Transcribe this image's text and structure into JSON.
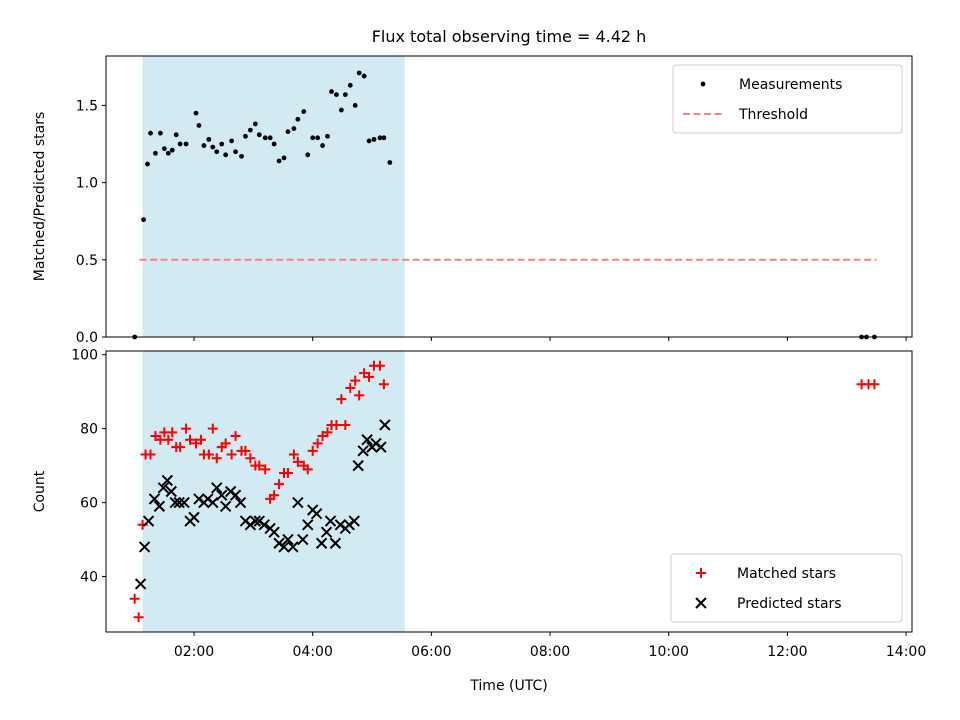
{
  "title": "Flux total observing time = 4.42 h",
  "colors": {
    "shade": "#add8e6",
    "measurement": "#000000",
    "threshold": "#ff7f7f",
    "matched": "#ff0000",
    "predicted": "#000000"
  },
  "chart_data": [
    {
      "type": "scatter",
      "ylabel": "Matched/Predicted stars",
      "xlim": [
        "00:31",
        "14:06"
      ],
      "ylim": [
        0,
        1.82
      ],
      "yticks": [
        "0.0",
        "0.5",
        "1.0",
        "1.5"
      ],
      "ytick_values": [
        0,
        0.5,
        1.0,
        1.5
      ],
      "grid": false,
      "legend_position": "top-right",
      "shaded_interval": [
        "01:08",
        "05:33"
      ],
      "series": [
        {
          "name": "Measurements",
          "marker": "dot",
          "points": [
            [
              "01:00",
              0.0
            ],
            [
              "01:09",
              0.76
            ],
            [
              "01:13",
              1.12
            ],
            [
              "01:16",
              1.32
            ],
            [
              "01:21",
              1.19
            ],
            [
              "01:26",
              1.32
            ],
            [
              "01:30",
              1.22
            ],
            [
              "01:34",
              1.19
            ],
            [
              "01:38",
              1.21
            ],
            [
              "01:42",
              1.31
            ],
            [
              "01:46",
              1.25
            ],
            [
              "01:52",
              1.25
            ],
            [
              "02:02",
              1.45
            ],
            [
              "02:05",
              1.37
            ],
            [
              "02:10",
              1.24
            ],
            [
              "02:15",
              1.28
            ],
            [
              "02:19",
              1.23
            ],
            [
              "02:23",
              1.2
            ],
            [
              "02:28",
              1.25
            ],
            [
              "02:32",
              1.18
            ],
            [
              "02:38",
              1.27
            ],
            [
              "02:42",
              1.2
            ],
            [
              "02:48",
              1.17
            ],
            [
              "02:52",
              1.3
            ],
            [
              "02:57",
              1.34
            ],
            [
              "03:02",
              1.38
            ],
            [
              "03:06",
              1.31
            ],
            [
              "03:12",
              1.29
            ],
            [
              "03:17",
              1.29
            ],
            [
              "03:21",
              1.25
            ],
            [
              "03:26",
              1.14
            ],
            [
              "03:31",
              1.16
            ],
            [
              "03:35",
              1.33
            ],
            [
              "03:41",
              1.35
            ],
            [
              "03:45",
              1.41
            ],
            [
              "03:51",
              1.46
            ],
            [
              "03:55",
              1.18
            ],
            [
              "04:00",
              1.29
            ],
            [
              "04:05",
              1.29
            ],
            [
              "04:10",
              1.24
            ],
            [
              "04:15",
              1.3
            ],
            [
              "04:19",
              1.59
            ],
            [
              "04:24",
              1.57
            ],
            [
              "04:29",
              1.47
            ],
            [
              "04:33",
              1.57
            ],
            [
              "04:38",
              1.63
            ],
            [
              "04:43",
              1.5
            ],
            [
              "04:47",
              1.71
            ],
            [
              "04:52",
              1.69
            ],
            [
              "04:57",
              1.27
            ],
            [
              "05:02",
              1.28
            ],
            [
              "05:08",
              1.29
            ],
            [
              "05:12",
              1.29
            ],
            [
              "05:18",
              1.13
            ],
            [
              "13:15",
              0.0
            ],
            [
              "13:20",
              0.0
            ],
            [
              "13:28",
              0.0
            ]
          ]
        },
        {
          "name": "Threshold",
          "style": "dashed",
          "points": [
            [
              "01:05",
              0.5
            ],
            [
              "13:30",
              0.5
            ]
          ]
        }
      ]
    },
    {
      "type": "scatter",
      "xlabel": "Time (UTC)",
      "ylabel": "Count",
      "xlim": [
        "00:31",
        "14:06"
      ],
      "ylim": [
        25,
        101
      ],
      "yticks": [
        "40",
        "60",
        "80",
        "100"
      ],
      "ytick_values": [
        40,
        60,
        80,
        100
      ],
      "xticks": [
        "02:00",
        "04:00",
        "06:00",
        "08:00",
        "10:00",
        "12:00",
        "14:00"
      ],
      "grid": false,
      "legend_position": "bottom-right",
      "shaded_interval": [
        "01:08",
        "05:33"
      ],
      "series": [
        {
          "name": "Matched stars",
          "marker": "plus",
          "points": [
            [
              "01:00",
              34
            ],
            [
              "01:04",
              29
            ],
            [
              "01:08",
              54
            ],
            [
              "01:11",
              73
            ],
            [
              "01:16",
              73
            ],
            [
              "01:21",
              78
            ],
            [
              "01:26",
              77
            ],
            [
              "01:30",
              79
            ],
            [
              "01:34",
              77
            ],
            [
              "01:38",
              79
            ],
            [
              "01:42",
              75
            ],
            [
              "01:46",
              75
            ],
            [
              "01:52",
              80
            ],
            [
              "01:56",
              77
            ],
            [
              "02:02",
              76
            ],
            [
              "02:07",
              77
            ],
            [
              "02:10",
              73
            ],
            [
              "02:15",
              73
            ],
            [
              "02:19",
              80
            ],
            [
              "02:23",
              72
            ],
            [
              "02:28",
              75
            ],
            [
              "02:32",
              76
            ],
            [
              "02:38",
              73
            ],
            [
              "02:42",
              78
            ],
            [
              "02:48",
              74
            ],
            [
              "02:52",
              74
            ],
            [
              "02:57",
              72
            ],
            [
              "03:02",
              70
            ],
            [
              "03:06",
              70
            ],
            [
              "03:12",
              69
            ],
            [
              "03:17",
              61
            ],
            [
              "03:21",
              62
            ],
            [
              "03:26",
              65
            ],
            [
              "03:31",
              68
            ],
            [
              "03:35",
              68
            ],
            [
              "03:41",
              73
            ],
            [
              "03:45",
              71
            ],
            [
              "03:51",
              70
            ],
            [
              "03:55",
              69
            ],
            [
              "04:00",
              74
            ],
            [
              "04:05",
              76
            ],
            [
              "04:10",
              78
            ],
            [
              "04:15",
              79
            ],
            [
              "04:19",
              81
            ],
            [
              "04:24",
              81
            ],
            [
              "04:29",
              88
            ],
            [
              "04:33",
              81
            ],
            [
              "04:38",
              91
            ],
            [
              "04:43",
              93
            ],
            [
              "04:47",
              89
            ],
            [
              "04:52",
              95
            ],
            [
              "04:57",
              94
            ],
            [
              "05:02",
              97
            ],
            [
              "05:08",
              97
            ],
            [
              "05:12",
              92
            ],
            [
              "13:15",
              92
            ],
            [
              "13:22",
              92
            ],
            [
              "13:28",
              92
            ]
          ]
        },
        {
          "name": "Predicted stars",
          "marker": "x",
          "points": [
            [
              "01:06",
              38
            ],
            [
              "01:10",
              48
            ],
            [
              "01:14",
              55
            ],
            [
              "01:20",
              61
            ],
            [
              "01:25",
              59
            ],
            [
              "01:29",
              64
            ],
            [
              "01:33",
              66
            ],
            [
              "01:37",
              63
            ],
            [
              "01:41",
              60
            ],
            [
              "01:45",
              60
            ],
            [
              "01:50",
              60
            ],
            [
              "01:56",
              55
            ],
            [
              "02:00",
              56
            ],
            [
              "02:05",
              61
            ],
            [
              "02:10",
              60
            ],
            [
              "02:14",
              61
            ],
            [
              "02:19",
              60
            ],
            [
              "02:23",
              64
            ],
            [
              "02:28",
              62
            ],
            [
              "02:32",
              59
            ],
            [
              "02:37",
              63
            ],
            [
              "02:42",
              62
            ],
            [
              "02:47",
              60
            ],
            [
              "02:52",
              55
            ],
            [
              "02:57",
              54
            ],
            [
              "03:02",
              55
            ],
            [
              "03:06",
              55
            ],
            [
              "03:11",
              54
            ],
            [
              "03:17",
              53
            ],
            [
              "03:21",
              52
            ],
            [
              "03:26",
              49
            ],
            [
              "03:31",
              48
            ],
            [
              "03:35",
              50
            ],
            [
              "03:40",
              48
            ],
            [
              "03:45",
              60
            ],
            [
              "03:50",
              50
            ],
            [
              "03:55",
              54
            ],
            [
              "04:00",
              58
            ],
            [
              "04:04",
              57
            ],
            [
              "04:09",
              49
            ],
            [
              "04:14",
              52
            ],
            [
              "04:18",
              55
            ],
            [
              "04:23",
              49
            ],
            [
              "04:28",
              54
            ],
            [
              "04:33",
              53
            ],
            [
              "04:37",
              54
            ],
            [
              "04:42",
              55
            ],
            [
              "04:46",
              70
            ],
            [
              "04:51",
              74
            ],
            [
              "04:55",
              77
            ],
            [
              "05:00",
              75
            ],
            [
              "05:04",
              76
            ],
            [
              "05:09",
              75
            ],
            [
              "05:13",
              81
            ]
          ]
        }
      ]
    }
  ]
}
